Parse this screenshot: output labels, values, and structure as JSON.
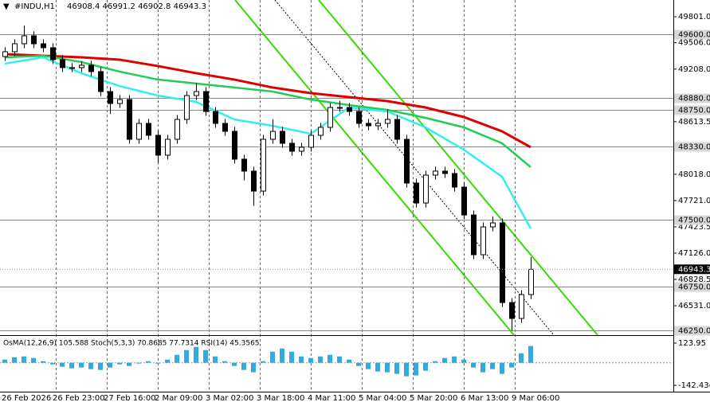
{
  "chart_data": {
    "type": "candlestick",
    "symbol": "#INDU,H1",
    "last_bar": "46908.4 46991.2 46902.8 46943.3",
    "candles": [
      [
        49350,
        49455,
        49300,
        49405
      ],
      [
        49405,
        49545,
        49355,
        49495
      ],
      [
        49495,
        49700,
        49445,
        49585
      ],
      [
        49585,
        49635,
        49445,
        49495
      ],
      [
        49495,
        49545,
        49400,
        49450
      ],
      [
        49450,
        49500,
        49265,
        49315
      ],
      [
        49315,
        49365,
        49175,
        49225
      ],
      [
        49225,
        49275,
        49175,
        49225
      ],
      [
        49225,
        49300,
        49175,
        49252
      ],
      [
        49252,
        49302,
        49130,
        49180
      ],
      [
        49180,
        49230,
        48904,
        48954
      ],
      [
        48954,
        49004,
        48700,
        48819
      ],
      [
        48819,
        48914,
        48769,
        48864
      ],
      [
        48864,
        48914,
        48364,
        48414
      ],
      [
        48414,
        48644,
        48364,
        48594
      ],
      [
        48594,
        48644,
        48409,
        48459
      ],
      [
        48459,
        48509,
        48150,
        48234
      ],
      [
        48234,
        48464,
        48184,
        48414
      ],
      [
        48414,
        48689,
        48364,
        48639
      ],
      [
        48639,
        48959,
        48589,
        48909
      ],
      [
        48909,
        49050,
        48859,
        48954
      ],
      [
        48954,
        49004,
        48679,
        48729
      ],
      [
        48729,
        48779,
        48544,
        48594
      ],
      [
        48594,
        48644,
        48454,
        48504
      ],
      [
        48504,
        48554,
        48139,
        48189
      ],
      [
        48189,
        48239,
        47950,
        48054
      ],
      [
        48054,
        48104,
        47660,
        47828
      ],
      [
        47828,
        48464,
        47778,
        48414
      ],
      [
        48414,
        48640,
        48364,
        48504
      ],
      [
        48504,
        48554,
        48319,
        48369
      ],
      [
        48369,
        48419,
        48229,
        48279
      ],
      [
        48279,
        48374,
        48229,
        48324
      ],
      [
        48324,
        48509,
        48274,
        48459
      ],
      [
        48459,
        48599,
        48409,
        48549
      ],
      [
        48549,
        48824,
        48499,
        48774
      ],
      [
        48774,
        48850,
        48724,
        48774
      ],
      [
        48774,
        48824,
        48679,
        48729
      ],
      [
        48729,
        48779,
        48544,
        48594
      ],
      [
        48594,
        48644,
        48517,
        48567
      ],
      [
        48567,
        48644,
        48517,
        48594
      ],
      [
        48594,
        48750,
        48544,
        48639
      ],
      [
        48639,
        48689,
        48364,
        48414
      ],
      [
        48414,
        48464,
        47869,
        47919
      ],
      [
        47919,
        47969,
        47643,
        47693
      ],
      [
        47693,
        48059,
        47643,
        48009
      ],
      [
        48009,
        48104,
        47959,
        48054
      ],
      [
        48054,
        48104,
        47977,
        48027
      ],
      [
        48027,
        48077,
        47823,
        47873
      ],
      [
        47873,
        47923,
        47508,
        47558
      ],
      [
        47558,
        47608,
        47058,
        47108
      ],
      [
        47108,
        47473,
        47058,
        47423
      ],
      [
        47423,
        47540,
        47373,
        47468
      ],
      [
        47468,
        47518,
        46517,
        46567
      ],
      [
        46567,
        46617,
        46250,
        46387
      ],
      [
        46387,
        46707,
        46337,
        46657
      ],
      [
        46657,
        47080,
        46607,
        46943
      ]
    ],
    "ma_at": [
      0,
      4,
      8,
      12,
      16,
      20,
      24,
      28,
      32,
      36,
      40,
      44,
      48,
      52,
      55
    ],
    "moving_averages": [
      {
        "color": "#e00000",
        "values": [
          49378,
          49360,
          49342,
          49315,
          49243,
          49162,
          49090,
          49000,
          48936,
          48891,
          48846,
          48774,
          48666,
          48504,
          48324
        ]
      },
      {
        "color": "#22cc55",
        "values": [
          49342,
          49360,
          49288,
          49180,
          49090,
          49045,
          49000,
          48954,
          48864,
          48801,
          48747,
          48657,
          48549,
          48369,
          48099
        ]
      },
      {
        "color": "#33eeee",
        "values": [
          49270,
          49342,
          49162,
          49017,
          48909,
          48837,
          48639,
          48567,
          48477,
          48774,
          48729,
          48549,
          48297,
          47991,
          47405
        ]
      }
    ],
    "ylim": [
      46198,
      49990
    ],
    "yticks": [
      {
        "value": 49801,
        "label": "49801.0"
      },
      {
        "value": 49506,
        "label": "49506.0"
      },
      {
        "value": 49208,
        "label": "49208.0"
      },
      {
        "value": 48613.5,
        "label": "48613.5"
      },
      {
        "value": 48018,
        "label": "48018.0"
      },
      {
        "value": 47721,
        "label": "47721.0"
      },
      {
        "value": 47423.5,
        "label": "47423.5"
      },
      {
        "value": 47126,
        "label": "47126.0"
      },
      {
        "value": 46828.5,
        "label": "46828.5"
      },
      {
        "value": 46531,
        "label": "46531.0"
      }
    ],
    "levels": [
      {
        "value": 49600,
        "label": "49600.0"
      },
      {
        "value": 48880,
        "label": "48880.0"
      },
      {
        "value": 48750,
        "label": "48750.0"
      },
      {
        "value": 48330,
        "label": "48330.0"
      },
      {
        "value": 47500,
        "label": "47500.0"
      },
      {
        "value": 46750,
        "label": "46750.0"
      },
      {
        "value": 46250,
        "label": "46250.0"
      }
    ],
    "current_price": {
      "value": 46943.3,
      "label": "46943.3"
    },
    "indicator_title": "OsMA(12,26,9) 105.588  Stoch(5,3,3) 70.8685 77.7314  RSI(14) 45.3565",
    "osma": [
      20,
      35,
      40,
      30,
      10,
      -10,
      -25,
      -35,
      -30,
      -40,
      -45,
      -30,
      -10,
      -20,
      -5,
      10,
      -5,
      20,
      50,
      80,
      100,
      80,
      40,
      10,
      -20,
      -45,
      -60,
      10,
      70,
      90,
      70,
      40,
      30,
      40,
      50,
      40,
      20,
      -20,
      -40,
      -55,
      -60,
      -70,
      -85,
      -80,
      -50,
      10,
      30,
      40,
      20,
      -30,
      -60,
      -40,
      -70,
      -30,
      60,
      105.588
    ],
    "osma_color": "#33aadd",
    "y2lim": [
      -182,
      159
    ],
    "y2ticks": [
      123.95,
      -142.434
    ],
    "dates": [
      "26 Feb 2026",
      "26 Feb 23:00",
      "27 Feb 16:00",
      "2 Mar 09:00",
      "3 Mar 02:00",
      "3 Mar 18:00",
      "4 Mar 11:00",
      "5 Mar 04:00",
      "5 Mar 20:00",
      "6 Mar 13:00",
      "9 Mar 06:00"
    ]
  }
}
